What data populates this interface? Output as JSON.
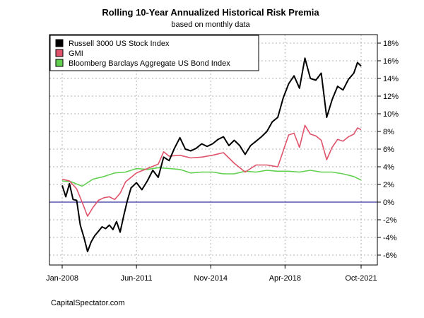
{
  "chart_data": {
    "type": "line",
    "title": "Rolling 10-Year Annualized Historical Risk Premia",
    "subtitle": "based on monthly data",
    "source_note": "CapitalSpectator.com",
    "x_ticks": [
      "Jan-2008",
      "Jun-2011",
      "Nov-2014",
      "Apr-2018",
      "Oct-2021"
    ],
    "xlim": [
      "Jan-2008",
      "Oct-2021"
    ],
    "y_ticks": [
      "-6%",
      "-4%",
      "-2%",
      "0%",
      "2%",
      "4%",
      "6%",
      "8%",
      "10%",
      "12%",
      "14%",
      "16%",
      "18%"
    ],
    "ylim": [
      -6.5,
      19
    ],
    "y_axis_side": "right",
    "grid": true,
    "zero_line_color": "#000080",
    "legend_position": "top-left",
    "series": [
      {
        "name": "Russell 3000 US Stock Index",
        "color": "#000000",
        "points": [
          [
            "2008-01",
            1.9
          ],
          [
            "2008-03",
            0.6
          ],
          [
            "2008-05",
            2.1
          ],
          [
            "2008-07",
            0.3
          ],
          [
            "2008-09",
            0.2
          ],
          [
            "2008-11",
            -2.6
          ],
          [
            "2009-01",
            -4.0
          ],
          [
            "2009-03",
            -5.6
          ],
          [
            "2009-05",
            -4.5
          ],
          [
            "2009-07",
            -3.8
          ],
          [
            "2009-09",
            -3.3
          ],
          [
            "2009-11",
            -2.8
          ],
          [
            "2010-01",
            -3.0
          ],
          [
            "2010-03",
            -2.6
          ],
          [
            "2010-05",
            -3.1
          ],
          [
            "2010-07",
            -2.2
          ],
          [
            "2010-09",
            -3.4
          ],
          [
            "2010-11",
            -1.5
          ],
          [
            "2011-01",
            0.2
          ],
          [
            "2011-03",
            1.6
          ],
          [
            "2011-06",
            2.2
          ],
          [
            "2011-09",
            1.4
          ],
          [
            "2011-12",
            2.4
          ],
          [
            "2012-03",
            3.6
          ],
          [
            "2012-06",
            2.8
          ],
          [
            "2012-09",
            5.1
          ],
          [
            "2012-12",
            4.7
          ],
          [
            "2013-03",
            6.1
          ],
          [
            "2013-06",
            7.3
          ],
          [
            "2013-09",
            6.0
          ],
          [
            "2013-12",
            5.8
          ],
          [
            "2014-03",
            6.1
          ],
          [
            "2014-06",
            6.6
          ],
          [
            "2014-09",
            6.3
          ],
          [
            "2014-12",
            6.6
          ],
          [
            "2015-03",
            7.1
          ],
          [
            "2015-06",
            7.4
          ],
          [
            "2015-09",
            6.4
          ],
          [
            "2015-12",
            7.0
          ],
          [
            "2016-03",
            6.4
          ],
          [
            "2016-06",
            5.4
          ],
          [
            "2016-09",
            6.4
          ],
          [
            "2016-12",
            6.9
          ],
          [
            "2017-03",
            7.4
          ],
          [
            "2017-06",
            8.0
          ],
          [
            "2017-09",
            9.1
          ],
          [
            "2017-12",
            9.6
          ],
          [
            "2018-03",
            11.8
          ],
          [
            "2018-06",
            13.4
          ],
          [
            "2018-09",
            14.3
          ],
          [
            "2018-12",
            12.9
          ],
          [
            "2019-03",
            16.3
          ],
          [
            "2019-06",
            14.0
          ],
          [
            "2019-09",
            13.8
          ],
          [
            "2019-12",
            14.6
          ],
          [
            "2020-03",
            9.6
          ],
          [
            "2020-06",
            11.6
          ],
          [
            "2020-09",
            13.1
          ],
          [
            "2020-12",
            12.7
          ],
          [
            "2021-03",
            13.9
          ],
          [
            "2021-06",
            14.6
          ],
          [
            "2021-08",
            15.8
          ],
          [
            "2021-10",
            15.4
          ]
        ]
      },
      {
        "name": "GMI",
        "color": "#DF536B",
        "points": [
          [
            "2008-01",
            2.6
          ],
          [
            "2008-05",
            2.4
          ],
          [
            "2008-09",
            1.5
          ],
          [
            "2008-12",
            0.0
          ],
          [
            "2009-03",
            -1.6
          ],
          [
            "2009-06",
            -0.6
          ],
          [
            "2009-09",
            0.2
          ],
          [
            "2009-12",
            0.5
          ],
          [
            "2010-03",
            0.6
          ],
          [
            "2010-06",
            0.3
          ],
          [
            "2010-09",
            1.0
          ],
          [
            "2010-12",
            2.3
          ],
          [
            "2011-06",
            3.3
          ],
          [
            "2011-12",
            3.8
          ],
          [
            "2012-06",
            4.3
          ],
          [
            "2012-09",
            5.7
          ],
          [
            "2012-12",
            5.2
          ],
          [
            "2013-06",
            5.3
          ],
          [
            "2013-12",
            5.0
          ],
          [
            "2014-06",
            5.1
          ],
          [
            "2014-12",
            5.3
          ],
          [
            "2015-06",
            5.6
          ],
          [
            "2015-12",
            4.4
          ],
          [
            "2016-06",
            3.4
          ],
          [
            "2016-12",
            4.2
          ],
          [
            "2017-06",
            4.2
          ],
          [
            "2017-12",
            4.0
          ],
          [
            "2018-06",
            7.6
          ],
          [
            "2018-09",
            7.8
          ],
          [
            "2018-12",
            6.2
          ],
          [
            "2019-03",
            8.7
          ],
          [
            "2019-06",
            7.7
          ],
          [
            "2019-09",
            7.5
          ],
          [
            "2019-12",
            7.0
          ],
          [
            "2020-03",
            4.8
          ],
          [
            "2020-06",
            6.2
          ],
          [
            "2020-09",
            7.1
          ],
          [
            "2020-12",
            6.9
          ],
          [
            "2021-03",
            7.4
          ],
          [
            "2021-06",
            7.7
          ],
          [
            "2021-08",
            8.4
          ],
          [
            "2021-10",
            8.2
          ]
        ]
      },
      {
        "name": "Bloomberg Barclays Aggregate US Bond Index",
        "color": "#61D04F",
        "points": [
          [
            "2008-01",
            2.4
          ],
          [
            "2008-06",
            2.3
          ],
          [
            "2008-12",
            1.8
          ],
          [
            "2009-06",
            2.6
          ],
          [
            "2009-12",
            2.9
          ],
          [
            "2010-06",
            3.3
          ],
          [
            "2010-12",
            3.4
          ],
          [
            "2011-06",
            3.8
          ],
          [
            "2011-12",
            3.7
          ],
          [
            "2012-06",
            3.9
          ],
          [
            "2012-12",
            3.8
          ],
          [
            "2013-06",
            3.7
          ],
          [
            "2013-12",
            3.3
          ],
          [
            "2014-06",
            3.4
          ],
          [
            "2014-12",
            3.4
          ],
          [
            "2015-06",
            3.2
          ],
          [
            "2015-12",
            3.2
          ],
          [
            "2016-06",
            3.5
          ],
          [
            "2016-12",
            3.4
          ],
          [
            "2017-06",
            3.6
          ],
          [
            "2017-12",
            3.5
          ],
          [
            "2018-06",
            3.5
          ],
          [
            "2018-12",
            3.4
          ],
          [
            "2019-06",
            3.6
          ],
          [
            "2019-12",
            3.4
          ],
          [
            "2020-06",
            3.4
          ],
          [
            "2020-12",
            3.2
          ],
          [
            "2021-06",
            2.9
          ],
          [
            "2021-10",
            2.5
          ]
        ]
      }
    ]
  }
}
